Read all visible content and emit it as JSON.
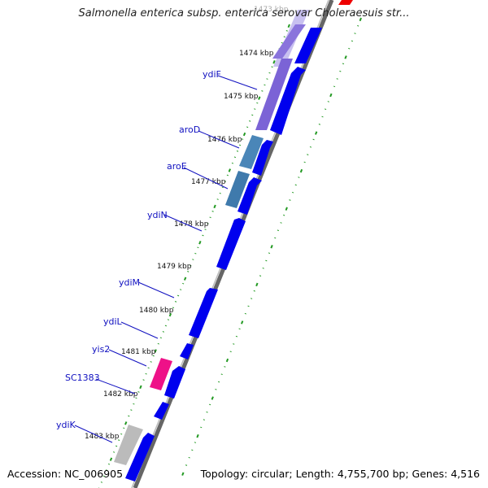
{
  "header": {
    "title": "Salmonella enterica subsp. enterica serovar Choleraesuis str..."
  },
  "footer": {
    "accession": "Accession: NC_006905",
    "summary": "Topology: circular; Length: 4,755,700 bp; Genes: 4,516"
  },
  "scale": {
    "labels": [
      "1473 kbp",
      "1474 kbp",
      "1475 kbp",
      "1476 kbp",
      "1477 kbp",
      "1478 kbp",
      "1479 kbp",
      "1480 kbp",
      "1481 kbp",
      "1482 kbp",
      "1483 kbp"
    ]
  },
  "genes": [
    {
      "name": "ydiF"
    },
    {
      "name": "aroD"
    },
    {
      "name": "aroE"
    },
    {
      "name": "ydiN"
    },
    {
      "name": "ydiM"
    },
    {
      "name": "ydiL"
    },
    {
      "name": "yis2"
    },
    {
      "name": "SC1383"
    },
    {
      "name": "ydiK"
    }
  ],
  "colors": {
    "cds_forward": "#0000ee",
    "cds_reverse": "#7b63d6",
    "cds_reverse_light": "#c8c0f0",
    "aro_genes": "#4a86b8",
    "insertion_element": "#ee1188",
    "pseudo": "#bbbbbb",
    "tick_dots": "#229922",
    "backbone": "#888888",
    "highlight": "#ee0000"
  }
}
